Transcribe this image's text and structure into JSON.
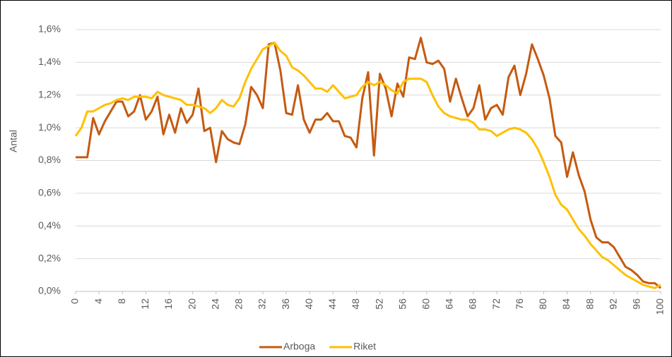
{
  "chart_data": {
    "type": "line",
    "y_label": "Antal",
    "x": [
      0,
      1,
      2,
      3,
      4,
      5,
      6,
      7,
      8,
      9,
      10,
      11,
      12,
      13,
      14,
      15,
      16,
      17,
      18,
      19,
      20,
      21,
      22,
      23,
      24,
      25,
      26,
      27,
      28,
      29,
      30,
      31,
      32,
      33,
      34,
      35,
      36,
      37,
      38,
      39,
      40,
      41,
      42,
      43,
      44,
      45,
      46,
      47,
      48,
      49,
      50,
      51,
      52,
      53,
      54,
      55,
      56,
      57,
      58,
      59,
      60,
      61,
      62,
      63,
      64,
      65,
      66,
      67,
      68,
      69,
      70,
      71,
      72,
      73,
      74,
      75,
      76,
      77,
      78,
      79,
      80,
      81,
      82,
      83,
      84,
      85,
      86,
      87,
      88,
      89,
      90,
      91,
      92,
      93,
      94,
      95,
      96,
      97,
      98,
      99,
      100
    ],
    "xlim": [
      0,
      100
    ],
    "xticks": [
      0,
      4,
      8,
      12,
      16,
      20,
      24,
      28,
      32,
      36,
      40,
      44,
      48,
      52,
      56,
      60,
      64,
      68,
      72,
      76,
      80,
      84,
      88,
      92,
      96,
      100
    ],
    "ylim": [
      0,
      1.6
    ],
    "yticks": [
      {
        "value": 0,
        "label": "0,0%"
      },
      {
        "value": 0.2,
        "label": "0,2%"
      },
      {
        "value": 0.4,
        "label": "0,4%"
      },
      {
        "value": 0.6,
        "label": "0,6%"
      },
      {
        "value": 0.8,
        "label": "0,8%"
      },
      {
        "value": 1.0,
        "label": "1,0%"
      },
      {
        "value": 1.2,
        "label": "1,2%"
      },
      {
        "value": 1.4,
        "label": "1,4%"
      },
      {
        "value": 1.6,
        "label": "1,6%"
      }
    ],
    "grid": true,
    "legend": "bottom",
    "series": [
      {
        "name": "Arboga",
        "color": "#c55a11",
        "values": [
          0.82,
          0.82,
          0.82,
          1.06,
          0.96,
          1.04,
          1.1,
          1.16,
          1.16,
          1.07,
          1.1,
          1.2,
          1.05,
          1.1,
          1.19,
          0.96,
          1.08,
          0.97,
          1.12,
          1.03,
          1.08,
          1.24,
          0.98,
          1.0,
          0.79,
          0.98,
          0.93,
          0.91,
          0.9,
          1.02,
          1.25,
          1.2,
          1.12,
          1.51,
          1.52,
          1.35,
          1.09,
          1.08,
          1.26,
          1.05,
          0.97,
          1.05,
          1.05,
          1.09,
          1.04,
          1.04,
          0.95,
          0.94,
          0.88,
          1.18,
          1.34,
          0.83,
          1.33,
          1.24,
          1.07,
          1.27,
          1.19,
          1.43,
          1.42,
          1.55,
          1.4,
          1.39,
          1.41,
          1.36,
          1.16,
          1.3,
          1.18,
          1.07,
          1.12,
          1.26,
          1.05,
          1.12,
          1.14,
          1.08,
          1.31,
          1.38,
          1.2,
          1.33,
          1.51,
          1.42,
          1.32,
          1.18,
          0.95,
          0.91,
          0.7,
          0.85,
          0.71,
          0.61,
          0.44,
          0.33,
          0.3,
          0.3,
          0.27,
          0.21,
          0.15,
          0.13,
          0.1,
          0.06,
          0.05,
          0.05,
          0.02
        ]
      },
      {
        "name": "Riket",
        "color": "#ffc000",
        "values": [
          0.95,
          1.0,
          1.1,
          1.1,
          1.12,
          1.14,
          1.15,
          1.17,
          1.18,
          1.17,
          1.19,
          1.19,
          1.19,
          1.18,
          1.22,
          1.2,
          1.19,
          1.18,
          1.17,
          1.14,
          1.14,
          1.13,
          1.12,
          1.09,
          1.12,
          1.17,
          1.14,
          1.13,
          1.18,
          1.28,
          1.36,
          1.42,
          1.48,
          1.5,
          1.52,
          1.47,
          1.44,
          1.37,
          1.35,
          1.32,
          1.28,
          1.24,
          1.24,
          1.22,
          1.26,
          1.22,
          1.18,
          1.19,
          1.2,
          1.25,
          1.28,
          1.26,
          1.28,
          1.26,
          1.23,
          1.21,
          1.28,
          1.3,
          1.3,
          1.3,
          1.28,
          1.2,
          1.13,
          1.09,
          1.07,
          1.06,
          1.05,
          1.05,
          1.03,
          0.99,
          0.99,
          0.98,
          0.95,
          0.97,
          0.99,
          1.0,
          0.99,
          0.97,
          0.93,
          0.87,
          0.79,
          0.7,
          0.59,
          0.53,
          0.5,
          0.44,
          0.38,
          0.34,
          0.29,
          0.25,
          0.21,
          0.19,
          0.16,
          0.13,
          0.1,
          0.08,
          0.06,
          0.04,
          0.03,
          0.02,
          0.04
        ]
      }
    ]
  }
}
